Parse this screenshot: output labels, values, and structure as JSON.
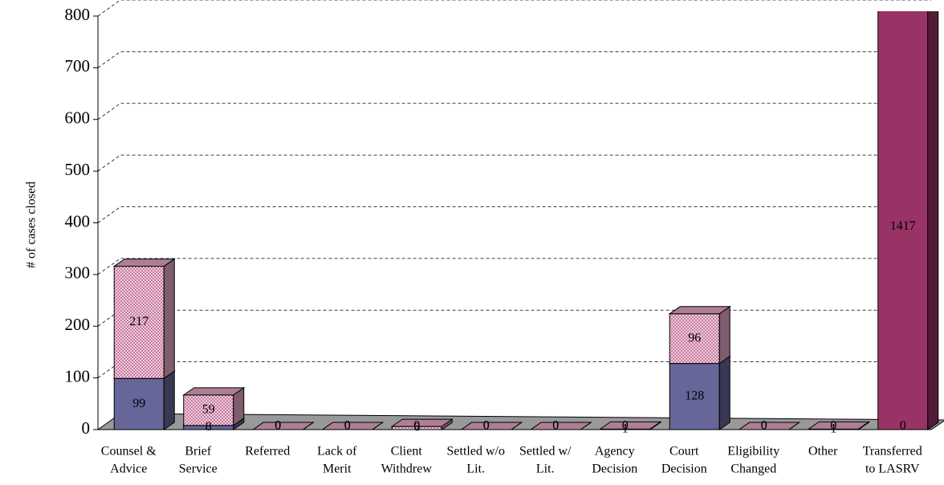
{
  "chart_data": {
    "type": "bar3d_stacked",
    "y_label": "# of cases closed",
    "categories": [
      [
        "Counsel &",
        "Advice"
      ],
      [
        "Brief",
        "Service"
      ],
      [
        "Referred",
        ""
      ],
      [
        "Lack of",
        "Merit"
      ],
      [
        "Client",
        "Withdrew"
      ],
      [
        "Settled w/o",
        "Lit."
      ],
      [
        "Settled w/",
        "Lit."
      ],
      [
        "Agency",
        "Decision"
      ],
      [
        "Court",
        "Decision"
      ],
      [
        "Eligibility",
        "Changed"
      ],
      [
        "Other",
        ""
      ],
      [
        "Transferred",
        "to LASRV"
      ]
    ],
    "series": [
      {
        "color": "#666699",
        "values": [
          99,
          8,
          0,
          0,
          0,
          0,
          0,
          0,
          128,
          0,
          0,
          0
        ]
      },
      {
        "color": "#e6a8c8",
        "colors": [
          "#e6a8c8",
          "#e6a8c8",
          "#e6a8c8",
          "#e6a8c8",
          "#e6a8c8",
          "#e6a8c8",
          "#e6a8c8",
          "#e6a8c8",
          "#e6a8c8",
          "#e6a8c8",
          "#e6a8c8",
          "#993366"
        ],
        "values": [
          217,
          59,
          0,
          0,
          6,
          0,
          0,
          1,
          96,
          0,
          1,
          1417
        ]
      }
    ],
    "ylim": [
      0,
      800
    ],
    "yticks": [
      0,
      100,
      200,
      300,
      400,
      500,
      600,
      700,
      800
    ],
    "grid": true
  }
}
